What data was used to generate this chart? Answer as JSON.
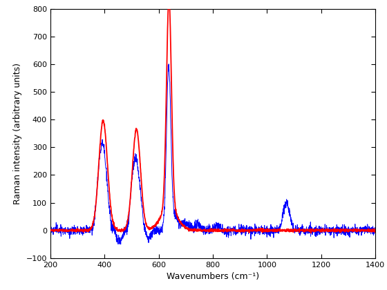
{
  "xlabel": "Wavenumbers (cm⁻¹)",
  "ylabel": "Raman intensity (arbitrary units)",
  "xlim": [
    200,
    1400
  ],
  "ylim": [
    -100,
    800
  ],
  "xticks": [
    200,
    400,
    600,
    800,
    1000,
    1200,
    1400
  ],
  "yticks": [
    -100,
    0,
    100,
    200,
    300,
    400,
    500,
    600,
    700,
    800
  ],
  "blue_color": "#0000FF",
  "red_color": "#FF0000",
  "background": "#FFFFFF",
  "linewidth_blue": 0.7,
  "linewidth_red": 1.3,
  "seed": 12345
}
